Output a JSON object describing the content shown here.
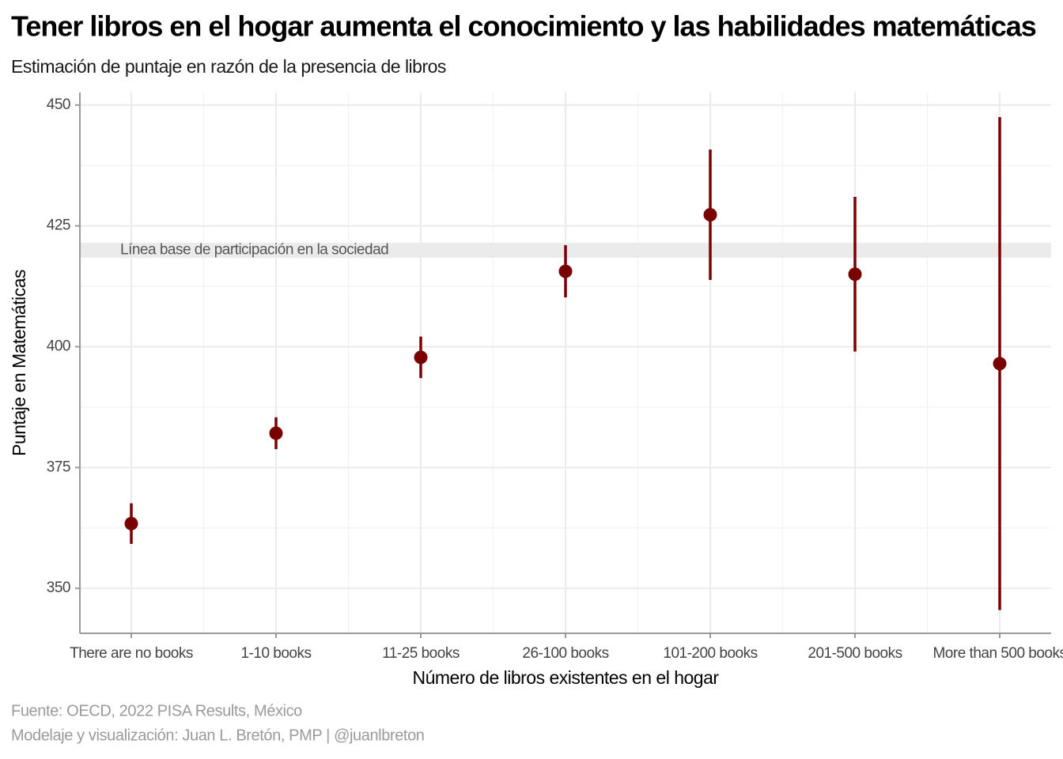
{
  "chart_data": {
    "type": "pointrange",
    "title": "Tener libros en el hogar aumenta el conocimiento y las habilidades matemáticas",
    "subtitle": "Estimación de puntaje en razón de la presencia de libros",
    "x_label": "Número de libros existentes en el hogar",
    "y_label": "Puntaje en Matemáticas",
    "caption": [
      "Fuente: OECD, 2022 PISA Results, México",
      "Modelaje y visualización: Juan L. Bretón, PMP | @juanlbreton"
    ],
    "categories": [
      "There are no books",
      "1-10 books",
      "11-25 books",
      "26-100 books",
      "101-200 books",
      "201-500 books",
      "More than 500 books"
    ],
    "values": [
      363.4,
      382.1,
      397.8,
      415.6,
      427.3,
      415.0,
      396.5
    ],
    "errors": [
      4.2,
      3.3,
      4.3,
      5.4,
      13.5,
      16.0,
      51.0
    ],
    "color": "#7a0000",
    "baseline_band": [
      418.4,
      421.5
    ],
    "baseline_color": "#ebebeb",
    "baseline_label": "Línea base de participación en la sociedad",
    "ylim": [
      340.7,
      452.6
    ],
    "yticks": [
      350,
      375,
      400,
      425,
      450
    ],
    "grid": true
  }
}
